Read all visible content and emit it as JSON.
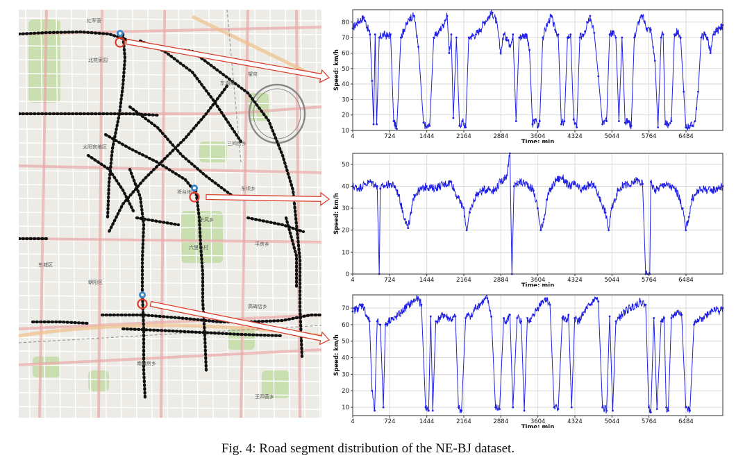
{
  "caption": "Fig. 4: Road segment distribution of the NE-BJ dataset.",
  "map": {
    "labels": [
      "红军营",
      "北苑家园",
      "东湖渠",
      "望京",
      "太阳宫地区",
      "将台地区",
      "东风乡",
      "东坝乡",
      "平房乡",
      "东城区",
      "朝阳区",
      "高碑店乡",
      "南磨房乡",
      "王四营乡",
      "六里屯村",
      "三间房乡"
    ],
    "colors": {
      "background": "#ecebe6",
      "green": "#c9dfb0",
      "road": "#e9a8a6",
      "road_major": "#f0c08a",
      "point": "#111111",
      "marker_blue": "#3a86c8",
      "marker_red": "#e03a2a",
      "arrow": "#d9432f"
    }
  },
  "chart_data": [
    {
      "type": "line",
      "ylabel": "Speed: km/h",
      "xlabel": "Time: min",
      "xlim": [
        4,
        7200
      ],
      "ylim": [
        10,
        88
      ],
      "xticks": [
        4,
        724,
        1444,
        2164,
        2884,
        3604,
        4324,
        5044,
        5764,
        6484
      ],
      "yticks": [
        10,
        20,
        30,
        40,
        50,
        60,
        70,
        80
      ],
      "grid": true,
      "color": "#1f1fe6",
      "x": [
        4,
        100,
        220,
        340,
        380,
        410,
        440,
        470,
        520,
        600,
        680,
        740,
        800,
        860,
        940,
        1000,
        1060,
        1120,
        1200,
        1280,
        1380,
        1440,
        1500,
        1580,
        1640,
        1700,
        1760,
        1800,
        1840,
        1880,
        1920,
        1960,
        2020,
        2080,
        2140,
        2200,
        2260,
        2320,
        2400,
        2480,
        2560,
        2640,
        2720,
        2800,
        2880,
        2940,
        3000,
        3060,
        3120,
        3180,
        3240,
        3300,
        3380,
        3440,
        3500,
        3560,
        3600,
        3640,
        3700,
        3780,
        3860,
        3940,
        4000,
        4060,
        4120,
        4180,
        4240,
        4300,
        4360,
        4420,
        4480,
        4520,
        4560,
        4620,
        4700,
        4780,
        4860,
        4940,
        5000,
        5060,
        5120,
        5180,
        5240,
        5300,
        5360,
        5420,
        5480,
        5560,
        5640,
        5720,
        5800,
        5880,
        5940,
        6000,
        6040,
        6080,
        6140,
        6200,
        6260,
        6320,
        6380,
        6440,
        6480,
        6540,
        6600,
        6660,
        6720,
        6780,
        6840,
        6900,
        6960,
        7020,
        7080,
        7140,
        7200
      ],
      "y": [
        76,
        80,
        83,
        72,
        42,
        14,
        72,
        14,
        70,
        72,
        71,
        72,
        16,
        11,
        70,
        75,
        79,
        83,
        84,
        64,
        15,
        12,
        13,
        70,
        72,
        75,
        78,
        81,
        84,
        60,
        72,
        18,
        70,
        13,
        16,
        12,
        70,
        71,
        72,
        75,
        80,
        83,
        86,
        80,
        60,
        72,
        70,
        65,
        72,
        16,
        70,
        71,
        72,
        62,
        14,
        17,
        12,
        16,
        70,
        78,
        84,
        75,
        72,
        14,
        16,
        70,
        72,
        17,
        12,
        70,
        72,
        74,
        80,
        84,
        73,
        45,
        14,
        16,
        72,
        74,
        70,
        16,
        70,
        15,
        16,
        13,
        70,
        80,
        84,
        76,
        75,
        55,
        12,
        70,
        72,
        14,
        14,
        16,
        72,
        74,
        70,
        35,
        12,
        13,
        13,
        16,
        35,
        70,
        72,
        70,
        60,
        72,
        74,
        76,
        78
      ]
    },
    {
      "type": "line",
      "ylabel": "Speed: km/h",
      "xlabel": "Time: min",
      "xlim": [
        4,
        7200
      ],
      "ylim": [
        0,
        55
      ],
      "xticks": [
        4,
        724,
        1444,
        2164,
        2884,
        3604,
        4324,
        5044,
        5764,
        6484
      ],
      "yticks": [
        0,
        10,
        20,
        30,
        40,
        50
      ],
      "grid": true,
      "color": "#1f1fe6",
      "x": [
        4,
        120,
        240,
        360,
        480,
        520,
        540,
        600,
        720,
        820,
        900,
        960,
        1020,
        1080,
        1140,
        1200,
        1300,
        1440,
        1560,
        1680,
        1800,
        1920,
        2040,
        2160,
        2220,
        2280,
        2400,
        2520,
        2640,
        2760,
        2880,
        3000,
        3060,
        3100,
        3140,
        3240,
        3400,
        3520,
        3600,
        3660,
        3720,
        3780,
        3840,
        3960,
        4080,
        4200,
        4320,
        4440,
        4560,
        4680,
        4800,
        4920,
        4980,
        5040,
        5160,
        5280,
        5400,
        5520,
        5640,
        5700,
        5740,
        5780,
        5800,
        5840,
        5880,
        5940,
        6060,
        6180,
        6300,
        6420,
        6480,
        6540,
        6600,
        6660,
        6720,
        6840,
        6960,
        7080,
        7200
      ],
      "y": [
        40,
        39,
        41,
        42,
        40,
        0,
        39,
        40,
        41,
        40,
        36,
        30,
        25,
        21,
        28,
        36,
        38,
        40,
        39,
        40,
        41,
        42,
        35,
        30,
        20,
        28,
        36,
        38,
        39,
        38,
        42,
        45,
        55,
        0,
        40,
        42,
        41,
        38,
        30,
        20,
        25,
        34,
        38,
        43,
        44,
        40,
        41,
        38,
        40,
        41,
        35,
        28,
        20,
        30,
        38,
        41,
        40,
        43,
        41,
        0,
        0,
        0,
        42,
        40,
        38,
        39,
        41,
        40,
        38,
        30,
        20,
        26,
        34,
        36,
        38,
        39,
        38,
        39,
        40
      ]
    },
    {
      "type": "line",
      "ylabel": "Speed: km/h",
      "xlabel": "Time: min",
      "xlim": [
        4,
        7200
      ],
      "ylim": [
        5,
        78
      ],
      "xticks": [
        4,
        724,
        1444,
        2164,
        2884,
        3604,
        4324,
        5044,
        5764,
        6484
      ],
      "yticks": [
        10,
        20,
        30,
        40,
        50,
        60,
        70
      ],
      "grid": true,
      "color": "#1f1fe6",
      "x": [
        4,
        100,
        200,
        280,
        330,
        380,
        430,
        480,
        540,
        600,
        640,
        700,
        760,
        800,
        860,
        940,
        1020,
        1100,
        1180,
        1260,
        1340,
        1420,
        1480,
        1520,
        1560,
        1620,
        1700,
        1780,
        1860,
        1940,
        2000,
        2060,
        2120,
        2200,
        2260,
        2320,
        2380,
        2460,
        2540,
        2620,
        2700,
        2780,
        2860,
        2940,
        3000,
        3060,
        3120,
        3200,
        3280,
        3340,
        3400,
        3460,
        3520,
        3600,
        3680,
        3760,
        3840,
        3920,
        4000,
        4080,
        4160,
        4200,
        4260,
        4320,
        4400,
        4480,
        4560,
        4620,
        4680,
        4720,
        4780,
        4860,
        4940,
        5000,
        5060,
        5120,
        5180,
        5240,
        5300,
        5400,
        5500,
        5600,
        5700,
        5760,
        5800,
        5860,
        5920,
        6000,
        6060,
        6100,
        6140,
        6200,
        6260,
        6320,
        6400,
        6480,
        6560,
        6640,
        6720,
        6800,
        6880,
        6960,
        7040,
        7120,
        7200
      ],
      "y": [
        68,
        70,
        72,
        65,
        62,
        20,
        8,
        62,
        60,
        10,
        60,
        62,
        64,
        63,
        65,
        67,
        70,
        72,
        74,
        76,
        72,
        10,
        8,
        65,
        8,
        62,
        64,
        66,
        64,
        63,
        65,
        10,
        8,
        64,
        66,
        65,
        70,
        72,
        74,
        76,
        65,
        10,
        9,
        64,
        62,
        66,
        10,
        64,
        62,
        8,
        64,
        62,
        66,
        70,
        74,
        76,
        72,
        10,
        9,
        64,
        62,
        66,
        10,
        64,
        62,
        66,
        70,
        72,
        74,
        76,
        74,
        10,
        8,
        65,
        8,
        62,
        64,
        66,
        68,
        70,
        72,
        74,
        72,
        10,
        7,
        64,
        9,
        62,
        64,
        10,
        8,
        64,
        66,
        68,
        66,
        10,
        8,
        60,
        62,
        64,
        66,
        68,
        70,
        68,
        70
      ]
    }
  ]
}
